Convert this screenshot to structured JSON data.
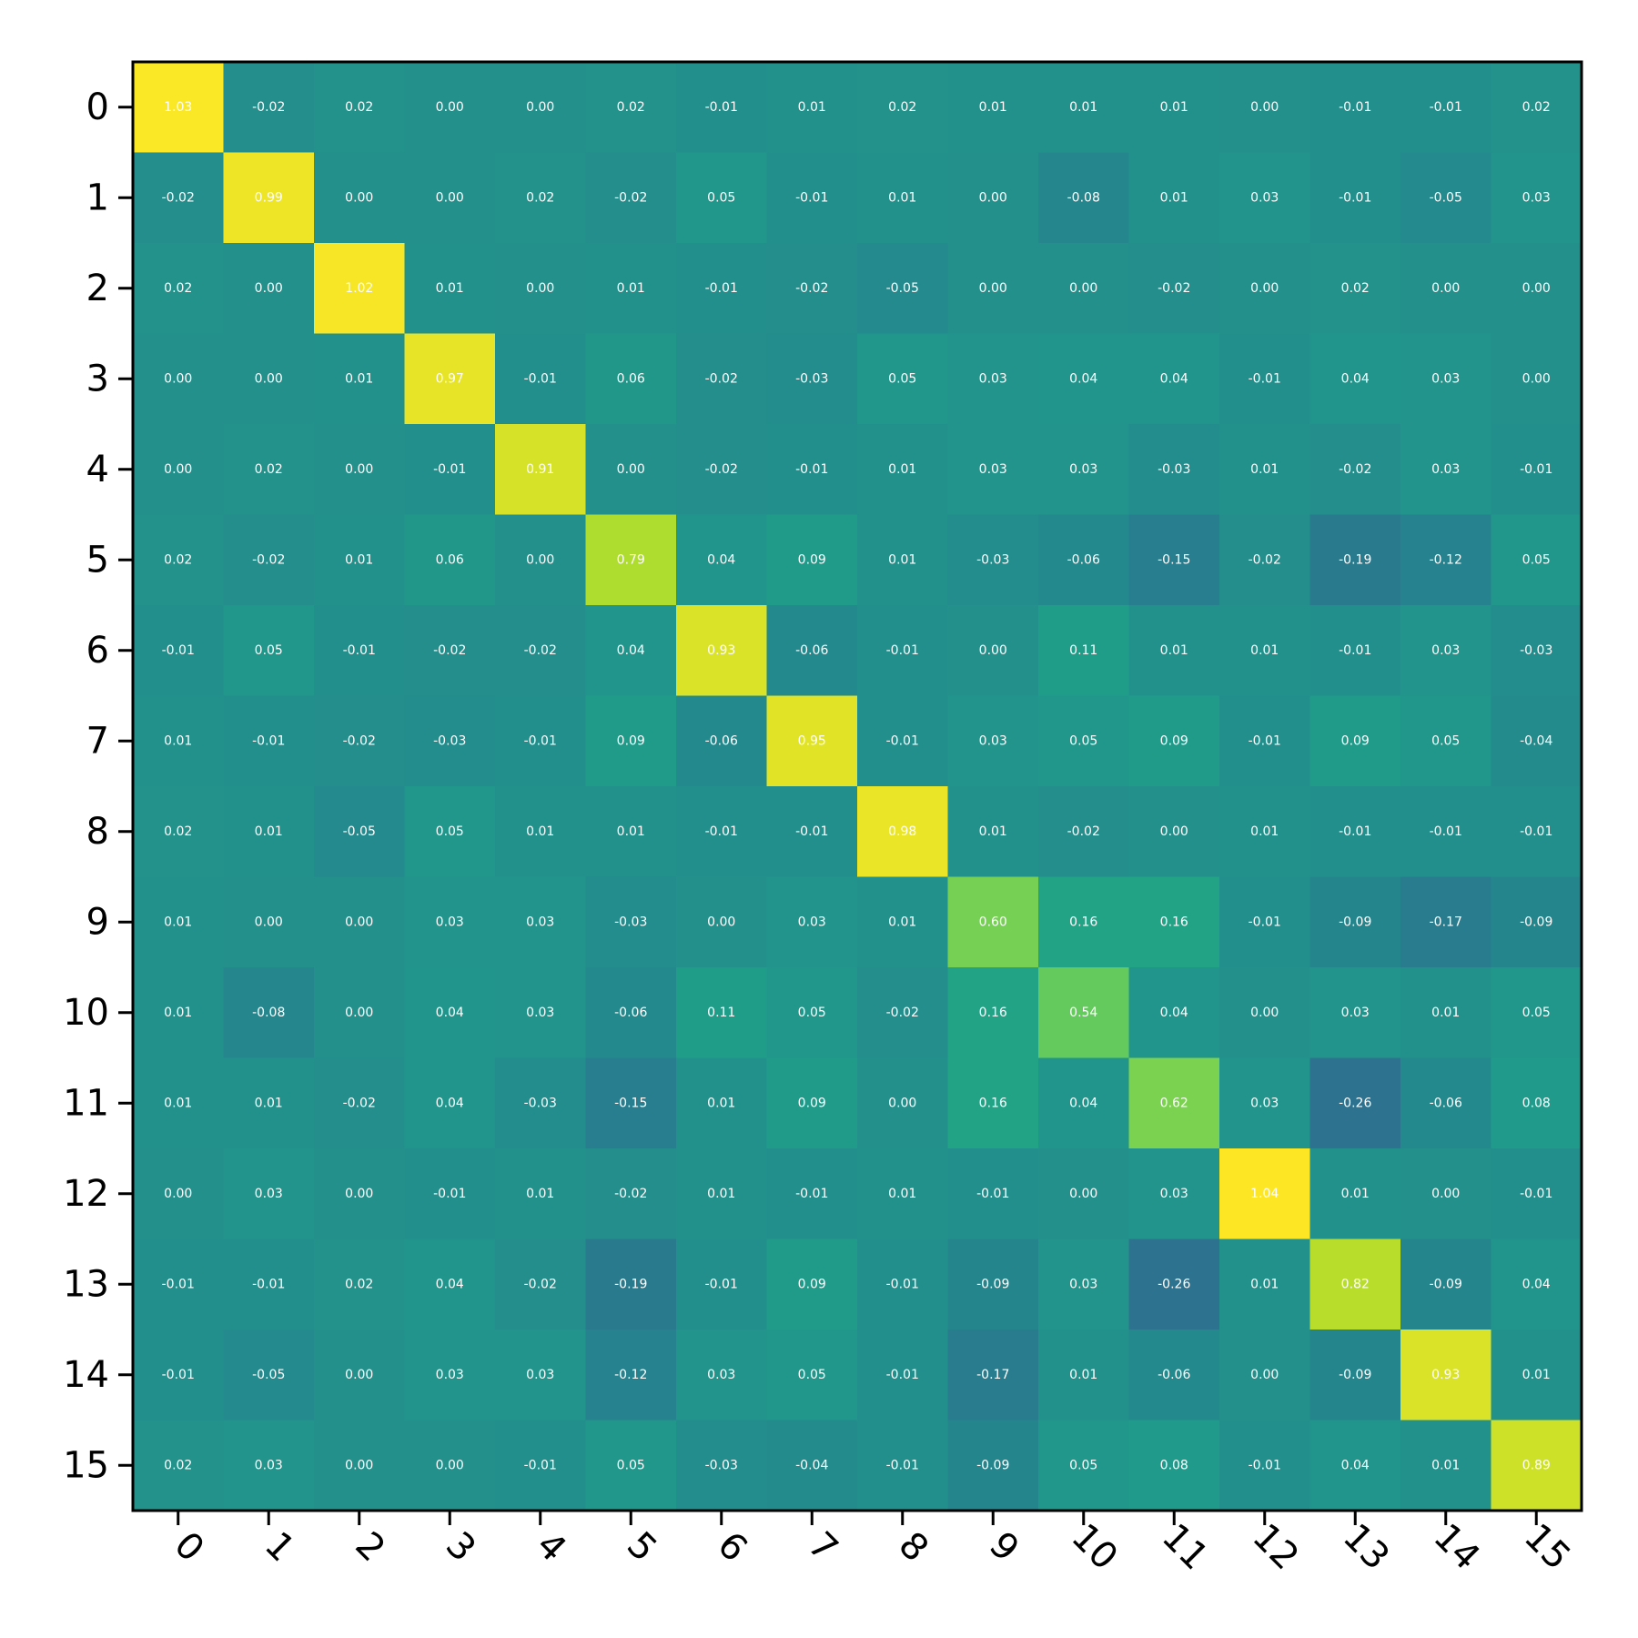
{
  "chart_data": {
    "type": "heatmap",
    "title": "",
    "xlabel": "",
    "ylabel": "",
    "x_categories": [
      "0",
      "1",
      "2",
      "3",
      "4",
      "5",
      "6",
      "7",
      "8",
      "9",
      "10",
      "11",
      "12",
      "13",
      "14",
      "15"
    ],
    "y_categories": [
      "0",
      "1",
      "2",
      "3",
      "4",
      "5",
      "6",
      "7",
      "8",
      "9",
      "10",
      "11",
      "12",
      "13",
      "14",
      "15"
    ],
    "x_tick_rotation_deg": 45,
    "colormap": "viridis",
    "value_format": "2 decimals",
    "values": [
      [
        1.03,
        -0.02,
        0.02,
        -0.0,
        -0.0,
        0.02,
        -0.01,
        0.01,
        0.02,
        0.01,
        0.01,
        0.01,
        -0.0,
        -0.01,
        -0.01,
        0.02
      ],
      [
        -0.02,
        0.99,
        -0.0,
        -0.0,
        0.02,
        -0.02,
        0.05,
        -0.01,
        0.01,
        0.0,
        -0.08,
        0.01,
        0.03,
        -0.01,
        -0.05,
        0.03
      ],
      [
        0.02,
        -0.0,
        1.02,
        0.01,
        0.0,
        0.01,
        -0.01,
        -0.02,
        -0.05,
        0.0,
        0.0,
        -0.02,
        -0.0,
        0.02,
        -0.0,
        0.0
      ],
      [
        -0.0,
        -0.0,
        0.01,
        0.97,
        -0.01,
        0.06,
        -0.02,
        -0.03,
        0.05,
        0.03,
        0.04,
        0.04,
        -0.01,
        0.04,
        0.03,
        0.0
      ],
      [
        -0.0,
        0.02,
        0.0,
        -0.01,
        0.91,
        0.0,
        -0.02,
        -0.01,
        0.01,
        0.03,
        0.03,
        -0.03,
        0.01,
        -0.02,
        0.03,
        -0.01
      ],
      [
        0.02,
        -0.02,
        0.01,
        0.06,
        0.0,
        0.79,
        0.04,
        0.09,
        0.01,
        -0.03,
        -0.06,
        -0.15,
        -0.02,
        -0.19,
        -0.12,
        0.05
      ],
      [
        -0.01,
        0.05,
        -0.01,
        -0.02,
        -0.02,
        0.04,
        0.93,
        -0.06,
        -0.01,
        0.0,
        0.11,
        0.01,
        0.01,
        -0.01,
        0.03,
        -0.03
      ],
      [
        0.01,
        -0.01,
        -0.02,
        -0.03,
        -0.01,
        0.09,
        -0.06,
        0.95,
        -0.01,
        0.03,
        0.05,
        0.09,
        -0.01,
        0.09,
        0.05,
        -0.04
      ],
      [
        0.02,
        0.01,
        -0.05,
        0.05,
        0.01,
        0.01,
        -0.01,
        -0.01,
        0.98,
        0.01,
        -0.02,
        0.0,
        0.01,
        -0.01,
        -0.01,
        -0.01
      ],
      [
        0.01,
        0.0,
        0.0,
        0.03,
        0.03,
        -0.03,
        0.0,
        0.03,
        0.01,
        0.6,
        0.16,
        0.16,
        -0.01,
        -0.09,
        -0.17,
        -0.09
      ],
      [
        0.01,
        -0.08,
        0.0,
        0.04,
        0.03,
        -0.06,
        0.11,
        0.05,
        -0.02,
        0.16,
        0.54,
        0.04,
        0.0,
        0.03,
        0.01,
        0.05
      ],
      [
        0.01,
        0.01,
        -0.02,
        0.04,
        -0.03,
        -0.15,
        0.01,
        0.09,
        0.0,
        0.16,
        0.04,
        0.62,
        0.03,
        -0.26,
        -0.06,
        0.08
      ],
      [
        -0.0,
        0.03,
        -0.0,
        -0.01,
        0.01,
        -0.02,
        0.01,
        -0.01,
        0.01,
        -0.01,
        0.0,
        0.03,
        1.04,
        0.01,
        0.0,
        -0.01
      ],
      [
        -0.01,
        -0.01,
        0.02,
        0.04,
        -0.02,
        -0.19,
        -0.01,
        0.09,
        -0.01,
        -0.09,
        0.03,
        -0.26,
        0.01,
        0.82,
        -0.09,
        0.04
      ],
      [
        -0.01,
        -0.05,
        -0.0,
        0.03,
        0.03,
        -0.12,
        0.03,
        0.05,
        -0.01,
        -0.17,
        0.01,
        -0.06,
        0.0,
        -0.09,
        0.93,
        0.01
      ],
      [
        0.02,
        0.03,
        0.0,
        0.0,
        -0.01,
        0.05,
        -0.03,
        -0.04,
        -0.01,
        -0.09,
        0.05,
        0.08,
        -0.01,
        0.04,
        0.01,
        0.89
      ]
    ],
    "color_scale": {
      "range": [
        -1.04,
        1.04
      ],
      "stops": [
        "#440154",
        "#482878",
        "#3e4989",
        "#31688e",
        "#26828e",
        "#1f9e89",
        "#35b779",
        "#6ece58",
        "#b5de2b",
        "#fde725"
      ]
    },
    "grid": false,
    "legend": "none"
  }
}
